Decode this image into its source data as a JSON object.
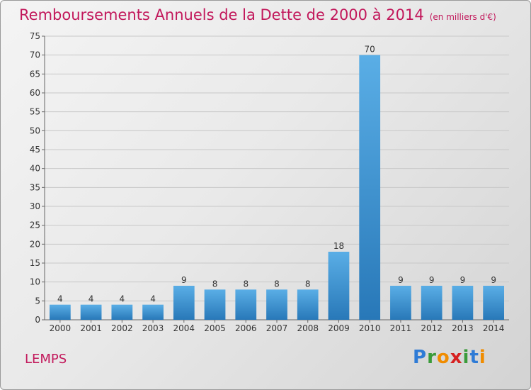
{
  "title": "Remboursements Annuels de la Dette de 2000 à 2014",
  "unit": "(en milliers d'€)",
  "commune": "LEMPS",
  "logo": {
    "letters": [
      "P",
      "r",
      "o",
      "x",
      "i",
      "t",
      "i"
    ],
    "colors": [
      "#2e7bd6",
      "#3a9b3a",
      "#f08c00",
      "#d62020",
      "#3a9b3a",
      "#2e7bd6",
      "#f08c00"
    ]
  },
  "colors": {
    "title": "#c2185b",
    "bar_light": "#5aaee6",
    "bar_dark": "#2878b8"
  },
  "chart_data": {
    "type": "bar",
    "categories": [
      "2000",
      "2001",
      "2002",
      "2003",
      "2004",
      "2005",
      "2006",
      "2007",
      "2008",
      "2009",
      "2010",
      "2011",
      "2012",
      "2013",
      "2014"
    ],
    "values": [
      4,
      4,
      4,
      4,
      9,
      8,
      8,
      8,
      8,
      18,
      70,
      9,
      9,
      9,
      9
    ],
    "ylim": [
      0,
      75
    ],
    "yticks": [
      0,
      5,
      10,
      15,
      20,
      25,
      30,
      35,
      40,
      45,
      50,
      55,
      60,
      65,
      70,
      75
    ],
    "grid": true
  }
}
